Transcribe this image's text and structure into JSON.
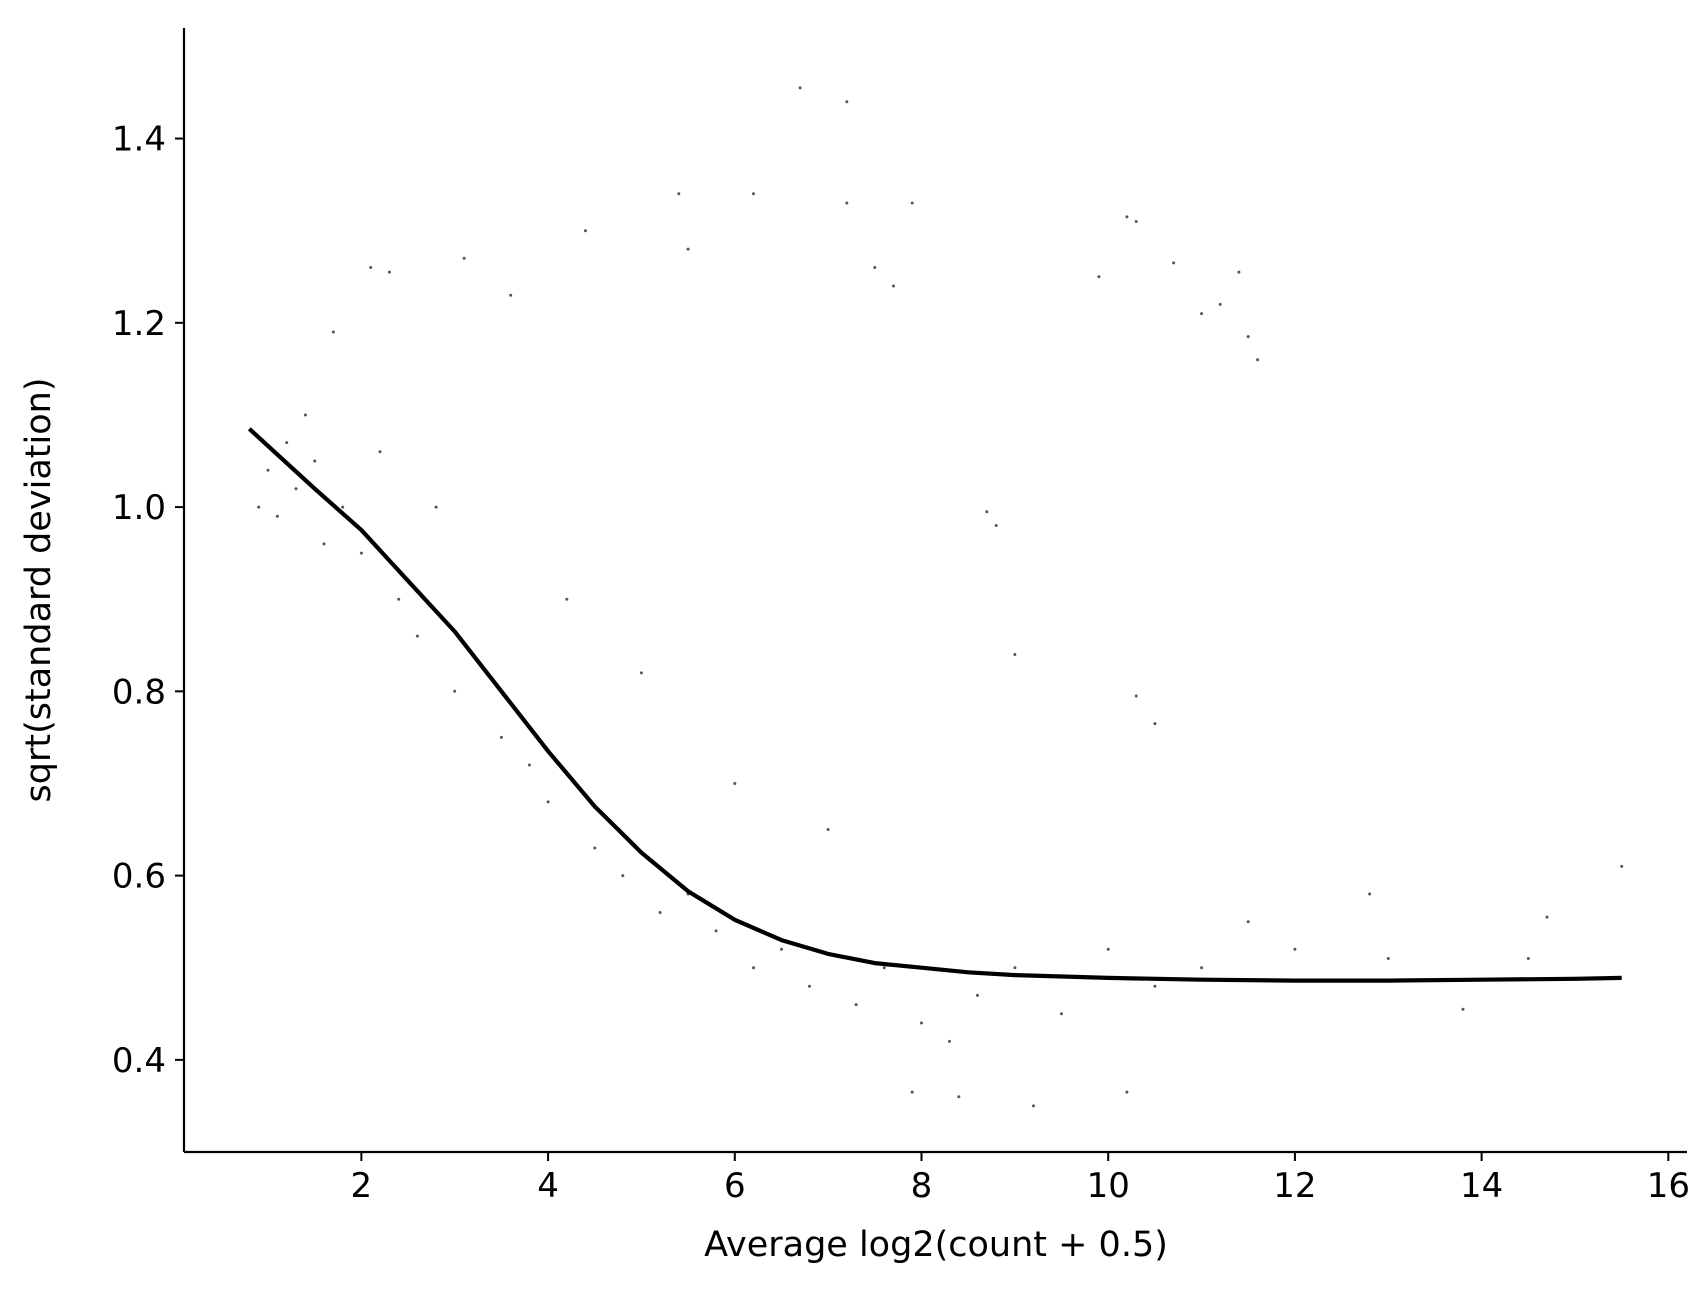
{
  "chart_data": {
    "type": "scatter",
    "title": "",
    "xlabel": "Average log2(count + 0.5)",
    "ylabel": "sqrt(standard deviation)",
    "xlim": [
      0.1,
      16.2
    ],
    "ylim": [
      0.3,
      1.52
    ],
    "xticks": [
      2,
      4,
      6,
      8,
      10,
      12,
      14,
      16
    ],
    "yticks": [
      0.4,
      0.6,
      0.8,
      1.0,
      1.2,
      1.4
    ],
    "xtick_labels": [
      "2",
      "4",
      "6",
      "8",
      "10",
      "12",
      "14",
      "16"
    ],
    "ytick_labels": [
      "0.4",
      "0.6",
      "0.8",
      "1.0",
      "1.2",
      "1.4"
    ],
    "grid": false,
    "legend": "none",
    "spines": "left-bottom",
    "colors": {
      "points": "#555555",
      "trend": "#000000",
      "axes": "#000000"
    },
    "series": [
      {
        "kind": "scatter",
        "note_points": "approximately 9000 genes; dense band hugging the trend from x≈0.9 to x≈10, sparse scatter above; representative sampled points listed",
        "points": [
          [
            0.9,
            1.0
          ],
          [
            1.0,
            1.04
          ],
          [
            1.1,
            0.99
          ],
          [
            1.2,
            1.07
          ],
          [
            1.3,
            1.02
          ],
          [
            1.4,
            1.1
          ],
          [
            1.5,
            1.05
          ],
          [
            1.6,
            0.96
          ],
          [
            1.8,
            1.0
          ],
          [
            2.0,
            0.95
          ],
          [
            2.2,
            1.06
          ],
          [
            2.4,
            0.9
          ],
          [
            2.6,
            0.86
          ],
          [
            2.8,
            1.0
          ],
          [
            3.0,
            0.8
          ],
          [
            3.2,
            0.84
          ],
          [
            3.5,
            0.75
          ],
          [
            3.8,
            0.72
          ],
          [
            4.0,
            0.68
          ],
          [
            4.2,
            0.9
          ],
          [
            4.5,
            0.63
          ],
          [
            4.8,
            0.6
          ],
          [
            5.0,
            0.82
          ],
          [
            5.2,
            0.56
          ],
          [
            5.5,
            0.58
          ],
          [
            5.8,
            0.54
          ],
          [
            6.0,
            0.7
          ],
          [
            6.2,
            0.5
          ],
          [
            6.5,
            0.52
          ],
          [
            6.8,
            0.48
          ],
          [
            7.0,
            0.65
          ],
          [
            7.3,
            0.46
          ],
          [
            7.6,
            0.5
          ],
          [
            8.0,
            0.44
          ],
          [
            8.3,
            0.42
          ],
          [
            8.6,
            0.47
          ],
          [
            9.0,
            0.5
          ],
          [
            9.5,
            0.45
          ],
          [
            10.0,
            0.52
          ],
          [
            10.5,
            0.48
          ],
          [
            11.0,
            0.5
          ],
          [
            11.5,
            0.55
          ],
          [
            12.0,
            0.52
          ],
          [
            13.0,
            0.51
          ],
          [
            14.5,
            0.51
          ],
          [
            15.5,
            0.61
          ],
          [
            6.7,
            1.455
          ],
          [
            7.2,
            1.44
          ],
          [
            5.4,
            1.34
          ],
          [
            6.2,
            1.34
          ],
          [
            10.2,
            1.315
          ],
          [
            10.3,
            1.31
          ],
          [
            4.4,
            1.3
          ],
          [
            5.5,
            1.28
          ],
          [
            7.9,
            1.33
          ],
          [
            7.2,
            1.33
          ],
          [
            3.1,
            1.27
          ],
          [
            1.7,
            1.19
          ],
          [
            2.1,
            1.26
          ],
          [
            2.3,
            1.255
          ],
          [
            9.9,
            1.25
          ],
          [
            10.7,
            1.265
          ],
          [
            11.4,
            1.255
          ],
          [
            11.0,
            1.21
          ],
          [
            11.2,
            1.22
          ],
          [
            11.5,
            1.185
          ],
          [
            11.6,
            1.16
          ],
          [
            7.5,
            1.26
          ],
          [
            7.7,
            1.24
          ],
          [
            3.6,
            1.23
          ],
          [
            8.7,
            0.995
          ],
          [
            8.8,
            0.98
          ],
          [
            9.0,
            0.84
          ],
          [
            10.3,
            0.795
          ],
          [
            10.5,
            0.765
          ],
          [
            12.8,
            0.58
          ],
          [
            13.8,
            0.455
          ],
          [
            14.7,
            0.555
          ],
          [
            9.2,
            0.35
          ],
          [
            7.9,
            0.365
          ],
          [
            8.4,
            0.36
          ],
          [
            10.2,
            0.365
          ]
        ]
      },
      {
        "kind": "line",
        "name": "",
        "x": [
          0.8,
          1.5,
          2.0,
          2.5,
          3.0,
          3.5,
          4.0,
          4.5,
          5.0,
          5.5,
          6.0,
          6.5,
          7.0,
          7.5,
          8.0,
          8.5,
          9.0,
          10.0,
          11.0,
          12.0,
          13.0,
          14.0,
          15.0,
          15.5
        ],
        "y": [
          1.085,
          1.02,
          0.975,
          0.92,
          0.865,
          0.8,
          0.735,
          0.675,
          0.625,
          0.583,
          0.552,
          0.53,
          0.515,
          0.505,
          0.5,
          0.495,
          0.492,
          0.489,
          0.487,
          0.486,
          0.486,
          0.487,
          0.488,
          0.489
        ]
      }
    ]
  }
}
